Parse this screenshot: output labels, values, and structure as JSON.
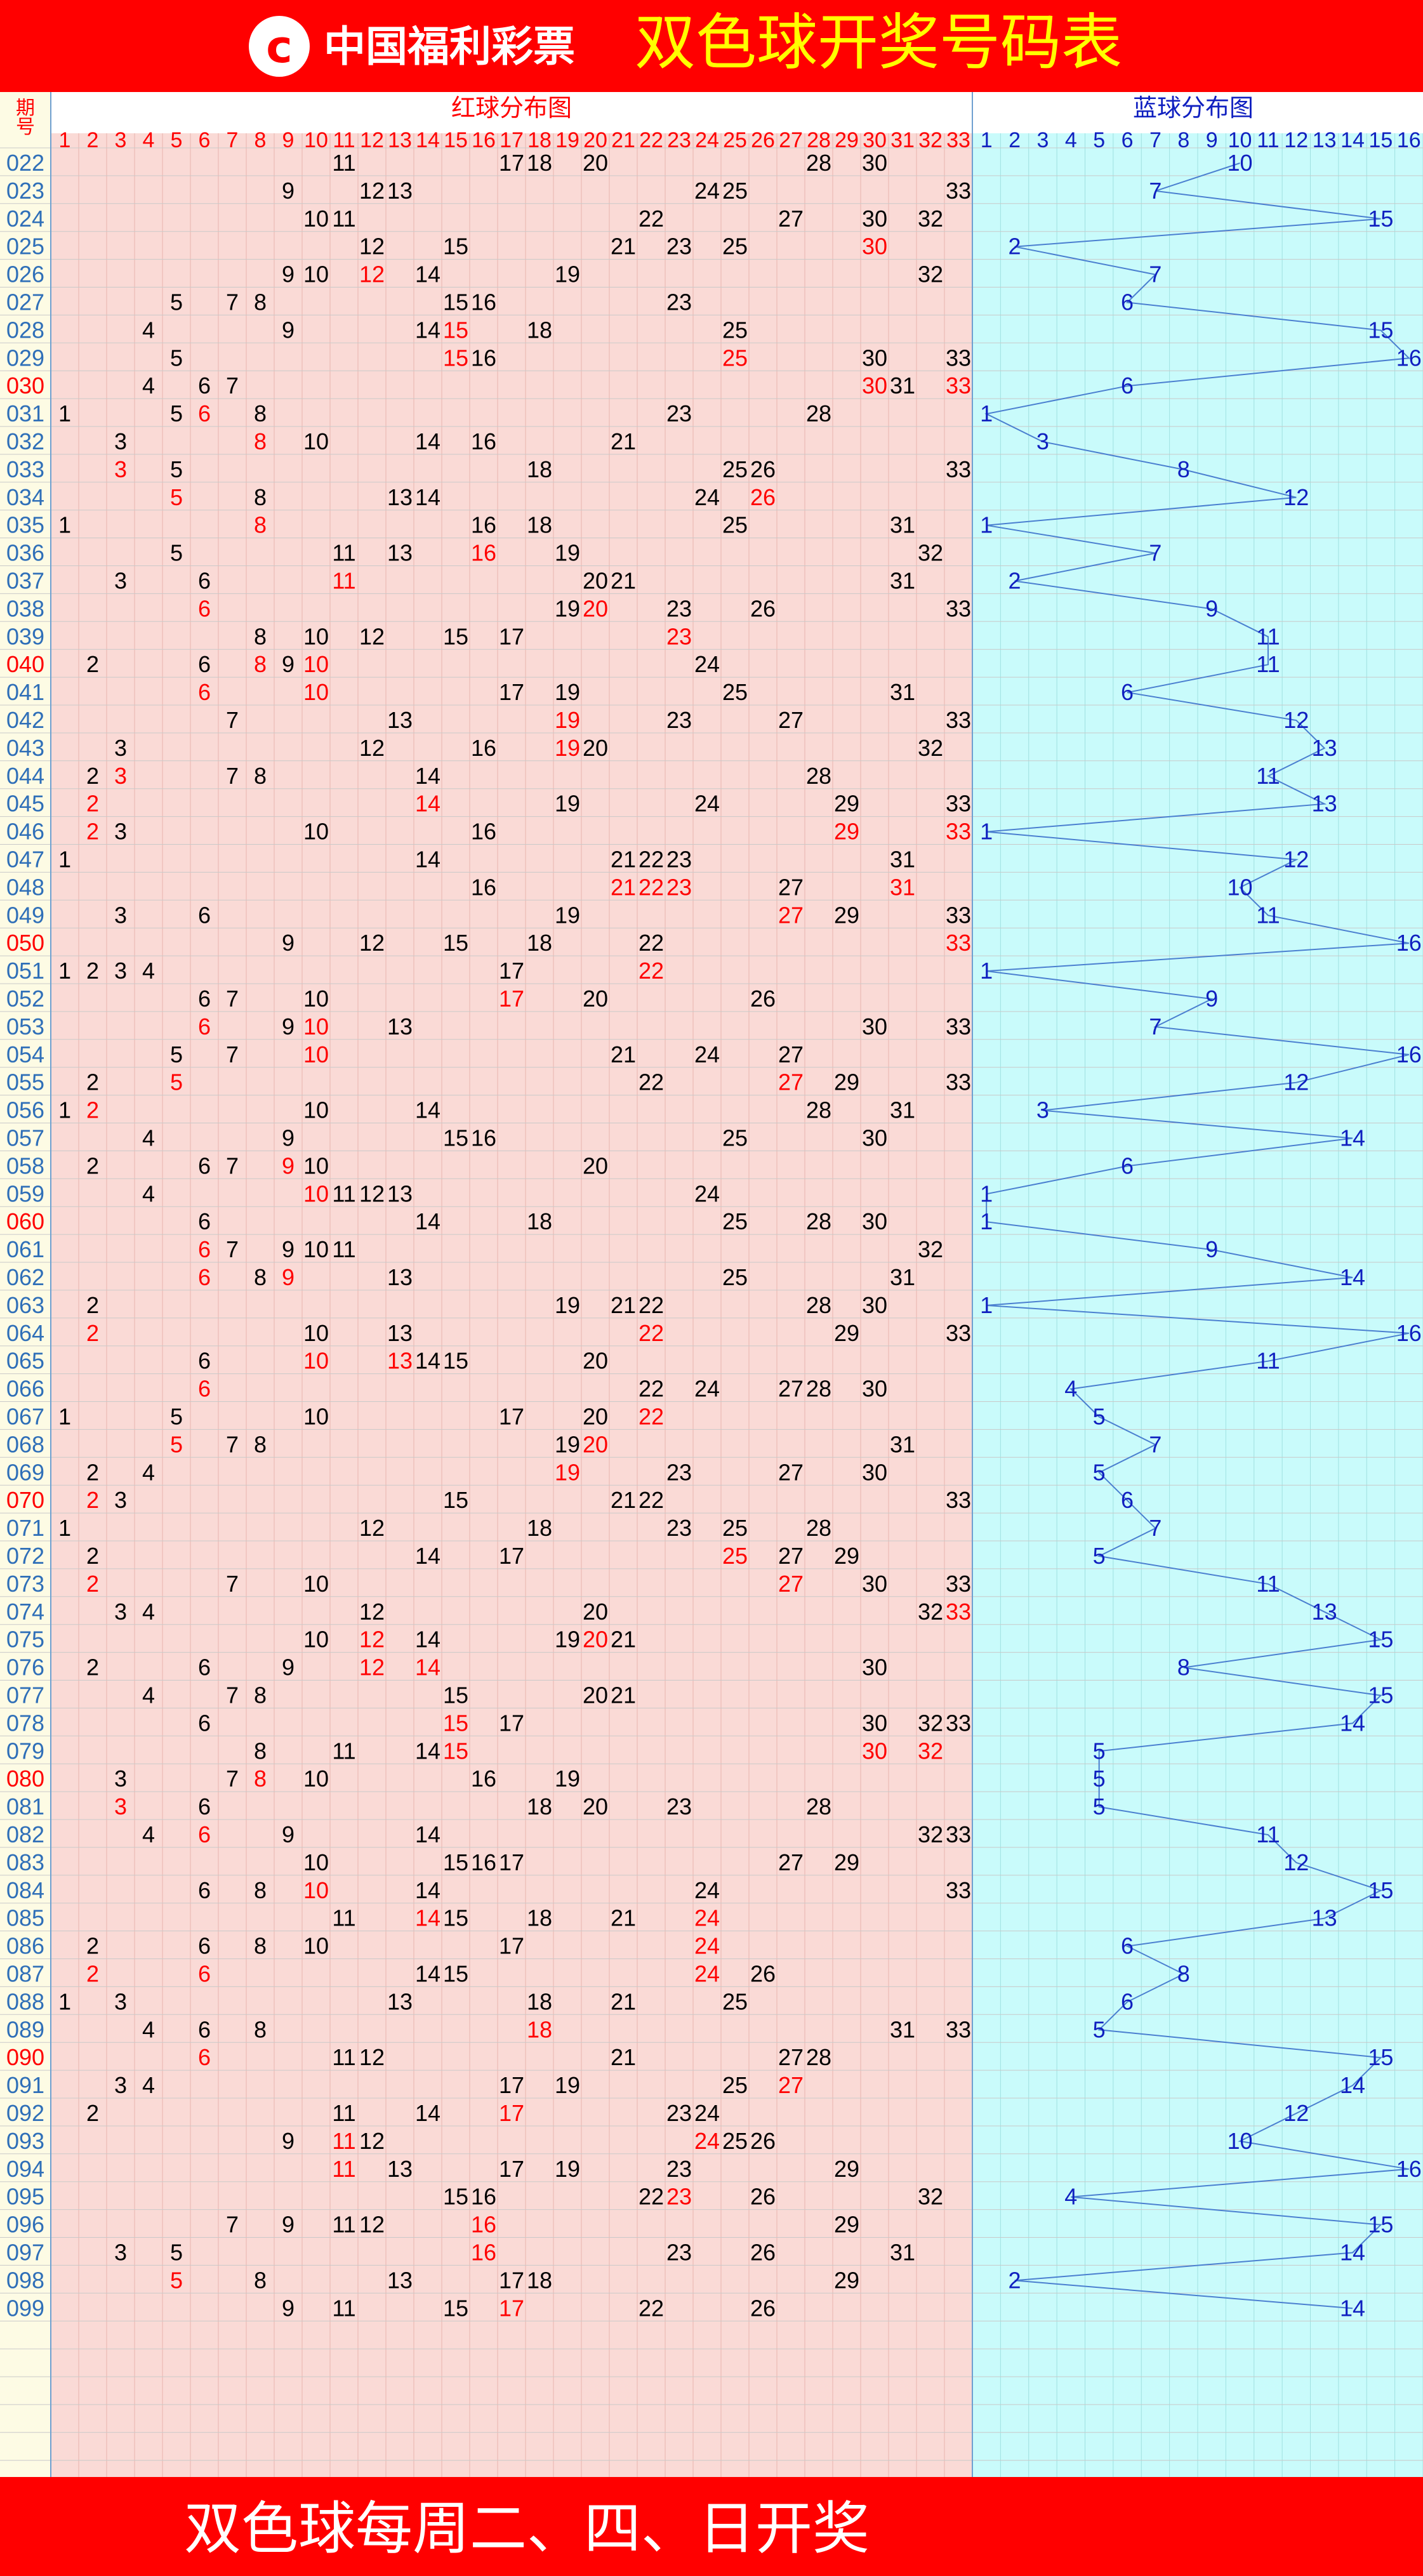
{
  "header": {
    "logo_text": "中国福利彩票",
    "title": "双色球开奖号码表"
  },
  "columns": {
    "issue_label": "期号",
    "red_title": "红球分布图",
    "blue_title": "蓝球分布图"
  },
  "footer": {
    "text": "双色球每周二、四、日开奖"
  },
  "colors": {
    "banner": "#ff0000",
    "title_text": "#ffff00",
    "red_zone_bg": "#fadad6",
    "blue_zone_bg": "#c9fbfb",
    "issue_bg": "#fdfbe4",
    "normal_number": "#000000",
    "repeat_number": "#ff0000",
    "blue_number": "#1020c0",
    "blue_line": "#4a7fd0",
    "issue_text": "#2f6fb8",
    "highlight_issue": "#ff0000"
  },
  "chart_data": {
    "type": "table",
    "red_range": [
      1,
      33
    ],
    "blue_range": [
      1,
      16
    ],
    "highlight_issues": [
      "030",
      "040",
      "050",
      "060",
      "070",
      "080",
      "090"
    ],
    "draws": [
      {
        "issue": "022",
        "red": [
          11,
          17,
          18,
          20,
          28,
          30
        ],
        "blue": 10
      },
      {
        "issue": "023",
        "red": [
          9,
          12,
          13,
          24,
          25,
          33
        ],
        "blue": 7
      },
      {
        "issue": "024",
        "red": [
          10,
          11,
          22,
          27,
          30,
          32
        ],
        "blue": 15
      },
      {
        "issue": "025",
        "red": [
          12,
          15,
          21,
          23,
          25,
          30
        ],
        "blue": 2
      },
      {
        "issue": "026",
        "red": [
          9,
          10,
          12,
          14,
          19,
          32
        ],
        "blue": 7
      },
      {
        "issue": "027",
        "red": [
          5,
          7,
          8,
          15,
          16,
          23
        ],
        "blue": 6
      },
      {
        "issue": "028",
        "red": [
          4,
          9,
          14,
          15,
          18,
          25
        ],
        "blue": 15
      },
      {
        "issue": "029",
        "red": [
          5,
          15,
          16,
          25,
          30,
          33
        ],
        "blue": 16
      },
      {
        "issue": "030",
        "red": [
          4,
          6,
          7,
          30,
          31,
          33
        ],
        "blue": 6
      },
      {
        "issue": "031",
        "red": [
          1,
          5,
          6,
          8,
          23,
          28
        ],
        "blue": 1
      },
      {
        "issue": "032",
        "red": [
          3,
          8,
          10,
          14,
          16,
          21
        ],
        "blue": 3
      },
      {
        "issue": "033",
        "red": [
          3,
          5,
          18,
          25,
          26,
          33
        ],
        "blue": 8
      },
      {
        "issue": "034",
        "red": [
          5,
          8,
          13,
          14,
          24,
          26
        ],
        "blue": 12
      },
      {
        "issue": "035",
        "red": [
          1,
          8,
          16,
          18,
          25,
          31
        ],
        "blue": 1
      },
      {
        "issue": "036",
        "red": [
          5,
          11,
          13,
          16,
          19,
          32
        ],
        "blue": 7
      },
      {
        "issue": "037",
        "red": [
          3,
          6,
          11,
          20,
          21,
          31
        ],
        "blue": 2
      },
      {
        "issue": "038",
        "red": [
          6,
          19,
          20,
          23,
          26,
          33
        ],
        "blue": 9
      },
      {
        "issue": "039",
        "red": [
          8,
          10,
          12,
          15,
          17,
          23
        ],
        "blue": 11
      },
      {
        "issue": "040",
        "red": [
          2,
          6,
          8,
          9,
          10,
          24
        ],
        "blue": 11
      },
      {
        "issue": "041",
        "red": [
          6,
          10,
          17,
          19,
          25,
          31
        ],
        "blue": 6
      },
      {
        "issue": "042",
        "red": [
          7,
          13,
          19,
          23,
          27,
          33
        ],
        "blue": 12
      },
      {
        "issue": "043",
        "red": [
          3,
          12,
          16,
          19,
          20,
          32
        ],
        "blue": 13
      },
      {
        "issue": "044",
        "red": [
          2,
          3,
          7,
          8,
          14,
          28
        ],
        "blue": 11
      },
      {
        "issue": "045",
        "red": [
          2,
          14,
          19,
          24,
          29,
          33
        ],
        "blue": 13
      },
      {
        "issue": "046",
        "red": [
          2,
          3,
          10,
          16,
          29,
          33
        ],
        "blue": 1
      },
      {
        "issue": "047",
        "red": [
          1,
          14,
          21,
          22,
          23,
          31
        ],
        "blue": 12
      },
      {
        "issue": "048",
        "red": [
          16,
          21,
          22,
          23,
          27,
          31
        ],
        "blue": 10
      },
      {
        "issue": "049",
        "red": [
          3,
          6,
          19,
          27,
          29,
          33
        ],
        "blue": 11
      },
      {
        "issue": "050",
        "red": [
          9,
          12,
          15,
          18,
          22,
          33
        ],
        "blue": 16
      },
      {
        "issue": "051",
        "red": [
          1,
          2,
          3,
          4,
          17,
          22
        ],
        "blue": 1
      },
      {
        "issue": "052",
        "red": [
          6,
          7,
          10,
          17,
          20,
          26
        ],
        "blue": 9
      },
      {
        "issue": "053",
        "red": [
          6,
          9,
          10,
          13,
          30,
          33
        ],
        "blue": 7
      },
      {
        "issue": "054",
        "red": [
          5,
          7,
          10,
          21,
          24,
          27
        ],
        "blue": 16
      },
      {
        "issue": "055",
        "red": [
          2,
          5,
          22,
          27,
          29,
          33
        ],
        "blue": 12
      },
      {
        "issue": "056",
        "red": [
          1,
          2,
          10,
          14,
          28,
          31
        ],
        "blue": 3
      },
      {
        "issue": "057",
        "red": [
          4,
          9,
          15,
          16,
          25,
          30
        ],
        "blue": 14
      },
      {
        "issue": "058",
        "red": [
          2,
          6,
          7,
          9,
          10,
          20
        ],
        "blue": 6
      },
      {
        "issue": "059",
        "red": [
          4,
          10,
          11,
          12,
          13,
          24
        ],
        "blue": 1
      },
      {
        "issue": "060",
        "red": [
          6,
          14,
          18,
          25,
          28,
          30
        ],
        "blue": 1
      },
      {
        "issue": "061",
        "red": [
          6,
          7,
          9,
          10,
          11,
          32
        ],
        "blue": 9
      },
      {
        "issue": "062",
        "red": [
          6,
          8,
          9,
          13,
          25,
          31
        ],
        "blue": 14
      },
      {
        "issue": "063",
        "red": [
          2,
          19,
          21,
          22,
          28,
          30
        ],
        "blue": 1
      },
      {
        "issue": "064",
        "red": [
          2,
          10,
          13,
          22,
          29,
          33
        ],
        "blue": 16
      },
      {
        "issue": "065",
        "red": [
          6,
          10,
          13,
          14,
          15,
          20
        ],
        "blue": 11
      },
      {
        "issue": "066",
        "red": [
          6,
          22,
          24,
          27,
          28,
          30
        ],
        "blue": 4
      },
      {
        "issue": "067",
        "red": [
          1,
          5,
          10,
          17,
          20,
          22
        ],
        "blue": 5
      },
      {
        "issue": "068",
        "red": [
          5,
          7,
          8,
          19,
          20,
          31
        ],
        "blue": 7
      },
      {
        "issue": "069",
        "red": [
          2,
          4,
          19,
          23,
          27,
          30
        ],
        "blue": 5
      },
      {
        "issue": "070",
        "red": [
          2,
          3,
          15,
          21,
          22,
          33
        ],
        "blue": 6
      },
      {
        "issue": "071",
        "red": [
          1,
          12,
          18,
          23,
          25,
          28
        ],
        "blue": 7
      },
      {
        "issue": "072",
        "red": [
          2,
          14,
          17,
          25,
          27,
          29
        ],
        "blue": 5
      },
      {
        "issue": "073",
        "red": [
          2,
          7,
          10,
          27,
          30,
          33
        ],
        "blue": 11
      },
      {
        "issue": "074",
        "red": [
          3,
          4,
          12,
          20,
          32,
          33
        ],
        "blue": 13
      },
      {
        "issue": "075",
        "red": [
          10,
          12,
          14,
          19,
          20,
          21
        ],
        "blue": 15
      },
      {
        "issue": "076",
        "red": [
          2,
          6,
          9,
          12,
          14,
          30
        ],
        "blue": 8
      },
      {
        "issue": "077",
        "red": [
          4,
          7,
          8,
          15,
          20,
          21
        ],
        "blue": 15
      },
      {
        "issue": "078",
        "red": [
          6,
          15,
          17,
          30,
          32,
          33
        ],
        "blue": 14
      },
      {
        "issue": "079",
        "red": [
          8,
          11,
          14,
          15,
          30,
          32
        ],
        "blue": 5
      },
      {
        "issue": "080",
        "red": [
          3,
          7,
          8,
          10,
          16,
          19
        ],
        "blue": 5
      },
      {
        "issue": "081",
        "red": [
          3,
          6,
          18,
          20,
          23,
          28
        ],
        "blue": 5
      },
      {
        "issue": "082",
        "red": [
          4,
          6,
          9,
          14,
          32,
          33
        ],
        "blue": 11
      },
      {
        "issue": "083",
        "red": [
          10,
          15,
          16,
          17,
          27,
          29
        ],
        "blue": 12
      },
      {
        "issue": "084",
        "red": [
          6,
          8,
          10,
          14,
          24,
          33
        ],
        "blue": 15
      },
      {
        "issue": "085",
        "red": [
          11,
          14,
          15,
          18,
          21,
          24
        ],
        "blue": 13
      },
      {
        "issue": "086",
        "red": [
          2,
          6,
          8,
          10,
          17,
          24
        ],
        "blue": 6
      },
      {
        "issue": "087",
        "red": [
          2,
          6,
          14,
          15,
          24,
          26
        ],
        "blue": 8
      },
      {
        "issue": "088",
        "red": [
          1,
          3,
          13,
          18,
          21,
          25
        ],
        "blue": 6
      },
      {
        "issue": "089",
        "red": [
          4,
          6,
          8,
          18,
          31,
          33
        ],
        "blue": 5
      },
      {
        "issue": "090",
        "red": [
          6,
          11,
          12,
          21,
          27,
          28
        ],
        "blue": 15
      },
      {
        "issue": "091",
        "red": [
          3,
          4,
          17,
          19,
          25,
          27
        ],
        "blue": 14
      },
      {
        "issue": "092",
        "red": [
          2,
          11,
          14,
          17,
          23,
          24
        ],
        "blue": 12
      },
      {
        "issue": "093",
        "red": [
          9,
          11,
          12,
          24,
          25,
          26
        ],
        "blue": 10
      },
      {
        "issue": "094",
        "red": [
          11,
          13,
          17,
          19,
          23,
          29
        ],
        "blue": 16
      },
      {
        "issue": "095",
        "red": [
          15,
          16,
          22,
          23,
          26,
          32
        ],
        "blue": 4
      },
      {
        "issue": "096",
        "red": [
          7,
          9,
          11,
          12,
          16,
          29
        ],
        "blue": 15
      },
      {
        "issue": "097",
        "red": [
          3,
          5,
          16,
          23,
          26,
          31
        ],
        "blue": 14
      },
      {
        "issue": "098",
        "red": [
          5,
          8,
          13,
          17,
          18,
          29
        ],
        "blue": 2
      },
      {
        "issue": "099",
        "red": [
          9,
          11,
          15,
          17,
          22,
          26
        ],
        "blue": 14
      }
    ]
  }
}
